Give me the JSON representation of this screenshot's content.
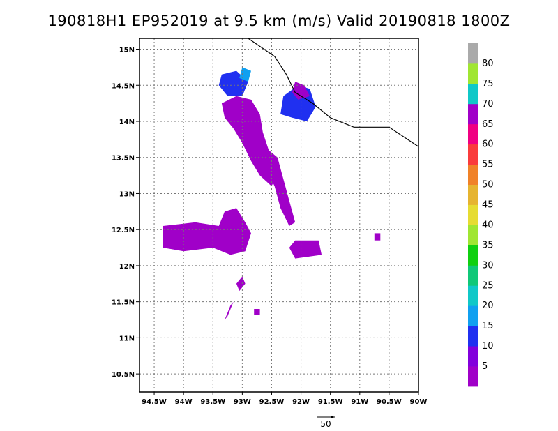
{
  "title": "190818H1 EP952019 at 9.5 km (m/s) Valid 20190818 1800Z",
  "map": {
    "lon_range": [
      -94.75,
      -90.0
    ],
    "lat_range": [
      10.25,
      15.15
    ],
    "x_ticks": [
      {
        "lon": -94.5,
        "label": "94.5W"
      },
      {
        "lon": -94.0,
        "label": "94W"
      },
      {
        "lon": -93.5,
        "label": "93.5W"
      },
      {
        "lon": -93.0,
        "label": "93W"
      },
      {
        "lon": -92.5,
        "label": "92.5W"
      },
      {
        "lon": -92.0,
        "label": "92W"
      },
      {
        "lon": -91.5,
        "label": "91.5W"
      },
      {
        "lon": -91.0,
        "label": "91W"
      },
      {
        "lon": -90.5,
        "label": "90.5W"
      },
      {
        "lon": -90.0,
        "label": "90W"
      }
    ],
    "y_ticks": [
      {
        "lat": 10.5,
        "label": "10.5N"
      },
      {
        "lat": 11.0,
        "label": "11N"
      },
      {
        "lat": 11.5,
        "label": "11.5N"
      },
      {
        "lat": 12.0,
        "label": "12N"
      },
      {
        "lat": 12.5,
        "label": "12.5N"
      },
      {
        "lat": 13.0,
        "label": "13N"
      },
      {
        "lat": 13.5,
        "label": "13.5N"
      },
      {
        "lat": 14.0,
        "label": "14N"
      },
      {
        "lat": 14.5,
        "label": "14.5N"
      },
      {
        "lat": 15.0,
        "label": "15N"
      }
    ],
    "grid": true,
    "coastline": [
      [
        -92.9,
        15.15
      ],
      [
        -92.45,
        14.9
      ],
      [
        -92.25,
        14.65
      ],
      [
        -92.1,
        14.4
      ],
      [
        -91.8,
        14.25
      ],
      [
        -91.5,
        14.05
      ],
      [
        -91.1,
        13.92
      ],
      [
        -90.5,
        13.92
      ],
      [
        -90.0,
        13.65
      ]
    ],
    "wind_regions": [
      {
        "color": "#a000c8",
        "polygon": [
          [
            -93.35,
            14.25
          ],
          [
            -93.1,
            14.35
          ],
          [
            -92.85,
            14.3
          ],
          [
            -92.7,
            14.1
          ],
          [
            -92.65,
            13.85
          ],
          [
            -92.55,
            13.6
          ],
          [
            -92.4,
            13.3
          ],
          [
            -92.5,
            13.1
          ],
          [
            -92.7,
            13.25
          ],
          [
            -92.85,
            13.45
          ],
          [
            -93.0,
            13.7
          ],
          [
            -93.15,
            13.9
          ],
          [
            -93.3,
            14.05
          ]
        ]
      },
      {
        "color": "#a000c8",
        "polygon": [
          [
            -92.55,
            13.6
          ],
          [
            -92.4,
            13.5
          ],
          [
            -92.3,
            13.2
          ],
          [
            -92.2,
            12.9
          ],
          [
            -92.1,
            12.6
          ],
          [
            -92.2,
            12.55
          ],
          [
            -92.35,
            12.8
          ],
          [
            -92.45,
            13.1
          ],
          [
            -92.6,
            13.35
          ]
        ]
      },
      {
        "color": "#a000c8",
        "polygon": [
          [
            -92.1,
            12.35
          ],
          [
            -91.7,
            12.35
          ],
          [
            -91.65,
            12.15
          ],
          [
            -92.1,
            12.1
          ],
          [
            -92.2,
            12.25
          ]
        ]
      },
      {
        "color": "#a000c8",
        "polygon": [
          [
            -94.35,
            12.55
          ],
          [
            -93.8,
            12.6
          ],
          [
            -93.4,
            12.55
          ],
          [
            -93.3,
            12.75
          ],
          [
            -93.1,
            12.8
          ],
          [
            -92.95,
            12.6
          ],
          [
            -92.85,
            12.45
          ],
          [
            -92.95,
            12.2
          ],
          [
            -93.2,
            12.15
          ],
          [
            -93.5,
            12.25
          ],
          [
            -94.0,
            12.2
          ],
          [
            -94.35,
            12.25
          ]
        ]
      },
      {
        "color": "#2030f0",
        "polygon": [
          [
            -92.3,
            14.35
          ],
          [
            -92.05,
            14.5
          ],
          [
            -91.85,
            14.45
          ],
          [
            -91.75,
            14.2
          ],
          [
            -91.9,
            14.0
          ],
          [
            -92.15,
            14.05
          ],
          [
            -92.35,
            14.1
          ]
        ]
      },
      {
        "color": "#a000c8",
        "polygon": [
          [
            -92.1,
            14.55
          ],
          [
            -91.95,
            14.5
          ],
          [
            -91.85,
            14.35
          ],
          [
            -92.05,
            14.3
          ],
          [
            -92.15,
            14.4
          ]
        ]
      },
      {
        "color": "#2030f0",
        "polygon": [
          [
            -93.35,
            14.65
          ],
          [
            -93.1,
            14.7
          ],
          [
            -92.9,
            14.55
          ],
          [
            -93.0,
            14.35
          ],
          [
            -93.25,
            14.35
          ],
          [
            -93.4,
            14.5
          ]
        ]
      },
      {
        "color": "#10a0f0",
        "polygon": [
          [
            -93.0,
            14.75
          ],
          [
            -92.85,
            14.7
          ],
          [
            -92.9,
            14.55
          ],
          [
            -93.05,
            14.6
          ]
        ]
      },
      {
        "color": "#a000c8",
        "polygon": [
          [
            -93.1,
            11.75
          ],
          [
            -93.0,
            11.85
          ],
          [
            -92.95,
            11.75
          ],
          [
            -93.05,
            11.65
          ]
        ]
      },
      {
        "color": "#a000c8",
        "polygon": [
          [
            -93.2,
            11.45
          ],
          [
            -93.15,
            11.5
          ],
          [
            -93.25,
            11.3
          ],
          [
            -93.3,
            11.25
          ]
        ]
      },
      {
        "color": "#a000c8",
        "polygon": [
          [
            -90.75,
            12.45
          ],
          [
            -90.65,
            12.45
          ],
          [
            -90.65,
            12.35
          ],
          [
            -90.75,
            12.35
          ]
        ]
      },
      {
        "color": "#a000c8",
        "polygon": [
          [
            -92.8,
            11.4
          ],
          [
            -92.7,
            11.4
          ],
          [
            -92.7,
            11.32
          ],
          [
            -92.8,
            11.32
          ]
        ]
      }
    ],
    "reference_vector_label": "50"
  },
  "colorbar": {
    "colors": [
      "#a000c8",
      "#8200dc",
      "#2030f0",
      "#10a0f0",
      "#10c8c8",
      "#10c878",
      "#10d010",
      "#a0e632",
      "#e6dc32",
      "#e6b430",
      "#f08228",
      "#fa3c3c",
      "#f00082",
      "#a000c8",
      "#10c8c8",
      "#a0e632",
      "#aaaaaa"
    ],
    "labels": [
      "5",
      "10",
      "15",
      "20",
      "25",
      "30",
      "35",
      "40",
      "45",
      "50",
      "55",
      "60",
      "65",
      "70",
      "75",
      "80"
    ]
  }
}
